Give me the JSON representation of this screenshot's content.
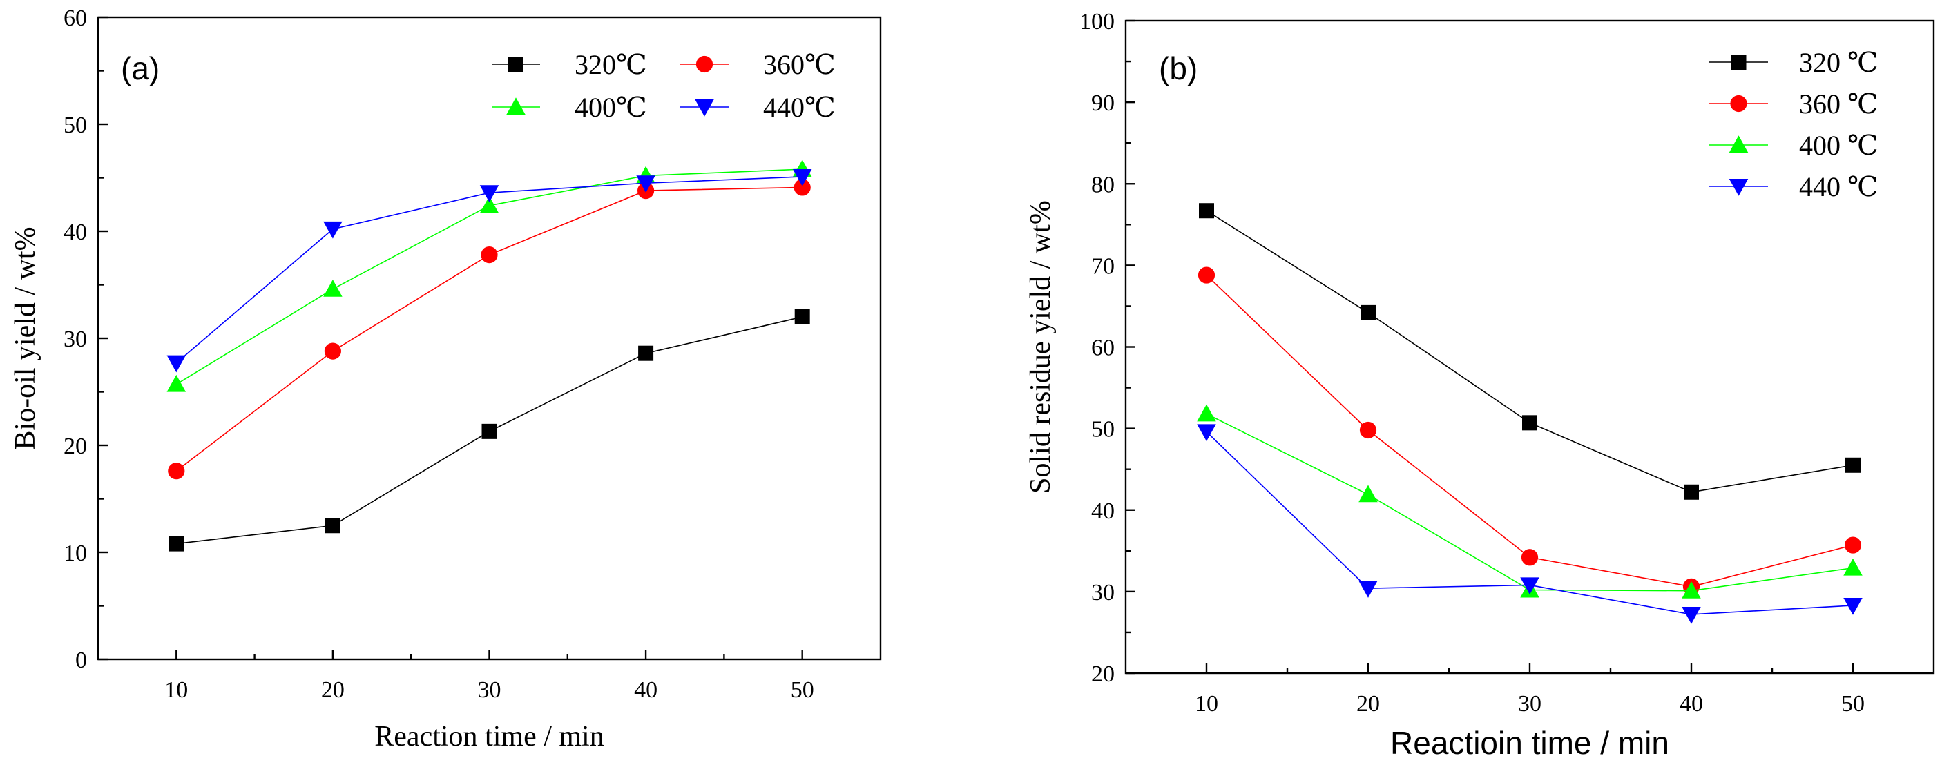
{
  "chart_data": [
    {
      "type": "line",
      "panel_label": "(a)",
      "xlabel": "Reaction time / min",
      "ylabel": "Bio-oil yield / wt%",
      "x": [
        10,
        20,
        30,
        40,
        50
      ],
      "x_ticks": [
        "10",
        "20",
        "30",
        "40",
        "50"
      ],
      "xlim": [
        5,
        55
      ],
      "ylim": [
        0,
        60
      ],
      "y_ticks": [
        "0",
        "10",
        "20",
        "30",
        "40",
        "50",
        "60"
      ],
      "legend_position": "top-right",
      "legend_columns": 2,
      "series": [
        {
          "name": "320℃",
          "marker": "square",
          "color": "#000000",
          "values": [
            10.8,
            12.5,
            21.3,
            28.6,
            32.0
          ]
        },
        {
          "name": "360℃",
          "marker": "circle",
          "color": "#ff0000",
          "values": [
            17.6,
            28.8,
            37.8,
            43.8,
            44.1
          ]
        },
        {
          "name": "400℃",
          "marker": "triangle-up",
          "color": "#00ff00",
          "values": [
            25.7,
            34.6,
            42.4,
            45.2,
            45.8
          ]
        },
        {
          "name": "440℃",
          "marker": "triangle-down",
          "color": "#0000ff",
          "values": [
            27.7,
            40.2,
            43.6,
            44.5,
            45.1
          ]
        }
      ]
    },
    {
      "type": "line",
      "panel_label": "(b)",
      "xlabel": "Reactioin time / min",
      "ylabel": "Solid residue yield / wt%",
      "x": [
        10,
        20,
        30,
        40,
        50
      ],
      "x_ticks": [
        "10",
        "20",
        "30",
        "40",
        "50"
      ],
      "xlim": [
        5,
        55
      ],
      "ylim": [
        20,
        100
      ],
      "y_ticks": [
        "20",
        "30",
        "40",
        "50",
        "60",
        "70",
        "80",
        "90",
        "100"
      ],
      "legend_position": "top-right",
      "legend_columns": 1,
      "series": [
        {
          "name": "320 ℃",
          "marker": "square",
          "color": "#000000",
          "values": [
            76.7,
            64.2,
            50.7,
            42.2,
            45.5
          ]
        },
        {
          "name": "360 ℃",
          "marker": "circle",
          "color": "#ff0000",
          "values": [
            68.8,
            49.8,
            34.2,
            30.6,
            35.7
          ]
        },
        {
          "name": "400 ℃",
          "marker": "triangle-up",
          "color": "#00ff00",
          "values": [
            51.8,
            41.9,
            30.2,
            30.1,
            32.9
          ]
        },
        {
          "name": "440 ℃",
          "marker": "triangle-down",
          "color": "#0000ff",
          "values": [
            49.6,
            30.4,
            30.8,
            27.2,
            28.3
          ]
        }
      ]
    }
  ]
}
